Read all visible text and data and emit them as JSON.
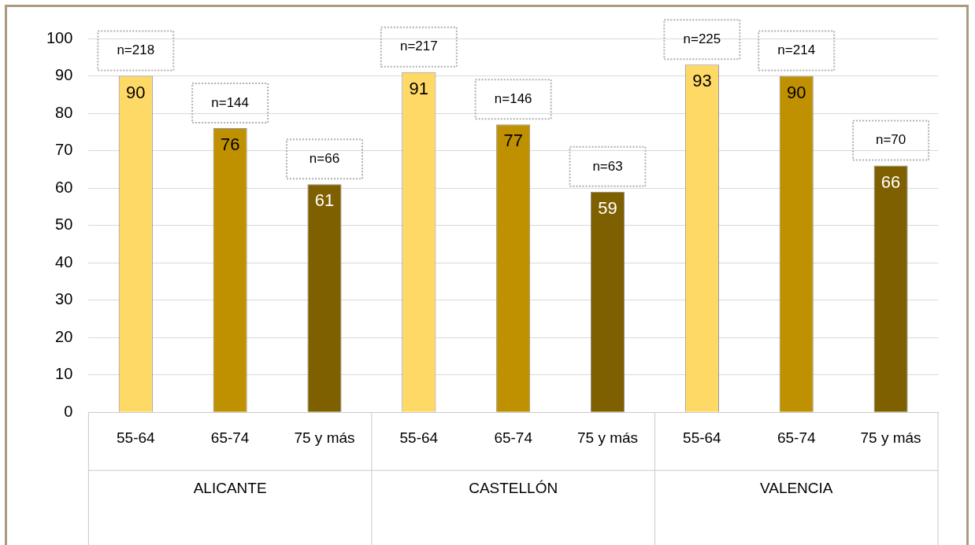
{
  "chart_data": {
    "type": "bar",
    "categories": [
      "55-64",
      "65-74",
      "75 y más",
      "55-64",
      "65-74",
      "75 y más",
      "55-64",
      "65-74",
      "75 y más"
    ],
    "values": [
      90,
      76,
      61,
      91,
      77,
      59,
      93,
      90,
      66
    ],
    "colors": [
      "#ffd966",
      "#bf9000",
      "#7f6000",
      "#ffd966",
      "#bf9000",
      "#7f6000",
      "#ffd966",
      "#bf9000",
      "#7f6000"
    ],
    "data_labels": true,
    "annotations": [
      "n=218",
      "n=144",
      "n=66",
      "n=217",
      "n=146",
      "n=63",
      "n=225",
      "n=214",
      "n=70",
      "ALICANTE",
      "CASTELLÓN",
      "VALENCIA"
    ],
    "ylim": [
      0,
      100
    ],
    "yticks": [
      0,
      10,
      20,
      30,
      40,
      50,
      60,
      70,
      80,
      90,
      100
    ],
    "grid": "y",
    "legend": false
  }
}
